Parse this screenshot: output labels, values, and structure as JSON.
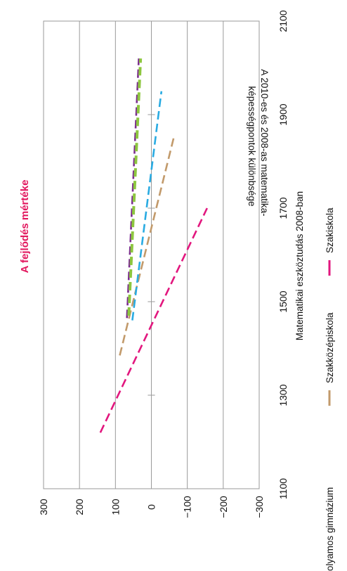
{
  "chart_data": {
    "type": "line",
    "title": "A fejlődés mértéke",
    "title_color": "#e2175e",
    "xlabel": "Matematikai eszköztudás 2008-ban",
    "ylabel_lines": [
      "A 2010-es és 2008-as matematika-",
      "képességpontok különbsége"
    ],
    "xlim": [
      1100,
      2100
    ],
    "ylim": [
      -300,
      300
    ],
    "x_ticks": [
      1100,
      1300,
      1500,
      1700,
      1900,
      2100
    ],
    "y_ticks": [
      300,
      200,
      100,
      0,
      -100,
      -200,
      -300
    ],
    "x_tick_labels": [
      "1100",
      "1300",
      "1500",
      "1700",
      "1900",
      "2100"
    ],
    "y_tick_labels": [
      "300",
      "200",
      "100",
      "0",
      "−100",
      "−200",
      "−300"
    ],
    "grid": true,
    "legend_position": "bottom",
    "series": [
      {
        "name": "Szakiskola",
        "color": "#e2177e",
        "dash": "dashed",
        "x": [
          1220,
          1700
        ],
        "y": [
          142,
          -155
        ]
      },
      {
        "name": "Szakközépiskola",
        "color": "#c29a6b",
        "dash": "dashed",
        "x": [
          1385,
          1850
        ],
        "y": [
          88,
          -62
        ]
      },
      {
        "name": "",
        "color": "#29abe2",
        "dash": "dashed",
        "x": [
          1460,
          1950
        ],
        "y": [
          53,
          -28
        ]
      },
      {
        "name": "",
        "color": "#7b2d8e",
        "dash": "dashed",
        "x": [
          1465,
          2020
        ],
        "y": [
          68,
          35
        ]
      },
      {
        "name": "olyamos gimnázium",
        "color": "#8dc63f",
        "dash": "dashed",
        "x": [
          1470,
          2020
        ],
        "y": [
          63,
          30
        ]
      }
    ],
    "legend": [
      {
        "label": "olyamos gimnázium",
        "color": "#8dc63f"
      },
      {
        "label": "Szakközépiskola",
        "color": "#c29a6b"
      },
      {
        "label": "Szakiskola",
        "color": "#e2177e"
      }
    ]
  }
}
